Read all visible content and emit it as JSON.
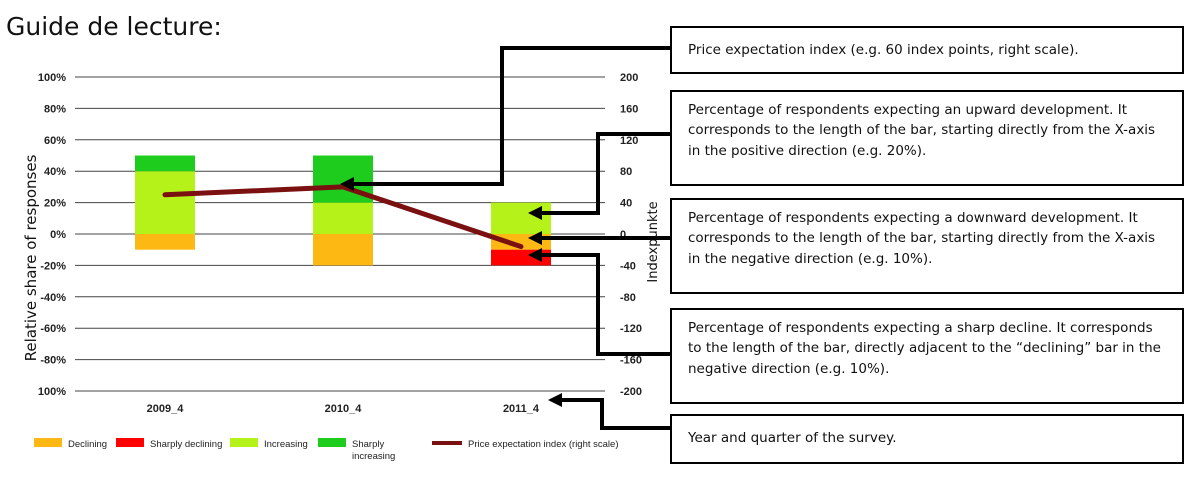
{
  "title": "Guide de lecture:",
  "chart_data": {
    "type": "bar",
    "stacked": true,
    "categories": [
      "2009_4",
      "2010_4",
      "2011_4"
    ],
    "ylabel": "Relative share of responses",
    "y2label": "Indexpunkte",
    "ylim": [
      -100,
      100
    ],
    "y2lim": [
      -200,
      200
    ],
    "y_ticks": [
      "100%",
      "80%",
      "60%",
      "40%",
      "20%",
      "0%",
      "-20%",
      "-40%",
      "-60%",
      "-80%",
      "100%"
    ],
    "y2_ticks": [
      "200",
      "160",
      "120",
      "80",
      "40",
      "0",
      "-40",
      "-80",
      "-120",
      "-160",
      "-200"
    ],
    "grid": true,
    "legend_position": "bottom",
    "series": [
      {
        "name": "Declining",
        "values": [
          -10,
          -20,
          -10
        ],
        "color": "#FDB813"
      },
      {
        "name": "Sharply declining",
        "values": [
          0,
          0,
          -10
        ],
        "color": "#FF0000"
      },
      {
        "name": "Increasing",
        "values": [
          40,
          20,
          20
        ],
        "color": "#B5F21A"
      },
      {
        "name": "Sharply increasing",
        "values": [
          10,
          30,
          0
        ],
        "color": "#1ECC1E"
      },
      {
        "name": "Price expectation index (right scale)",
        "type": "line",
        "axis": "right",
        "values": [
          50,
          60,
          -16
        ],
        "color": "#7B1010"
      }
    ],
    "legend": {
      "declining": "Declining",
      "sharply_declining": "Sharply declining",
      "increasing": "Increasing",
      "sharply_increasing_1": "Sharply",
      "sharply_increasing_2": "increasing",
      "index": "Price expectation index (right scale)"
    }
  },
  "annotations": [
    {
      "text": "Price expectation index (e.g. 60 index points, right scale)."
    },
    {
      "text": "Percentage of respondents expecting an upward development. It corresponds to the length of the bar, starting directly from the X-axis in the positive direction (e.g. 20%)."
    },
    {
      "text": "Percentage of respondents expecting a downward development. It corresponds to the length of the bar, starting directly from the X-axis in the negative direction (e.g. 10%)."
    },
    {
      "text": "Percentage of respondents expecting a sharp decline. It corresponds to the length of the bar, directly adjacent to the “declining” bar in the negative direction (e.g. 10%)."
    },
    {
      "text": "Year and quarter of the survey."
    }
  ]
}
